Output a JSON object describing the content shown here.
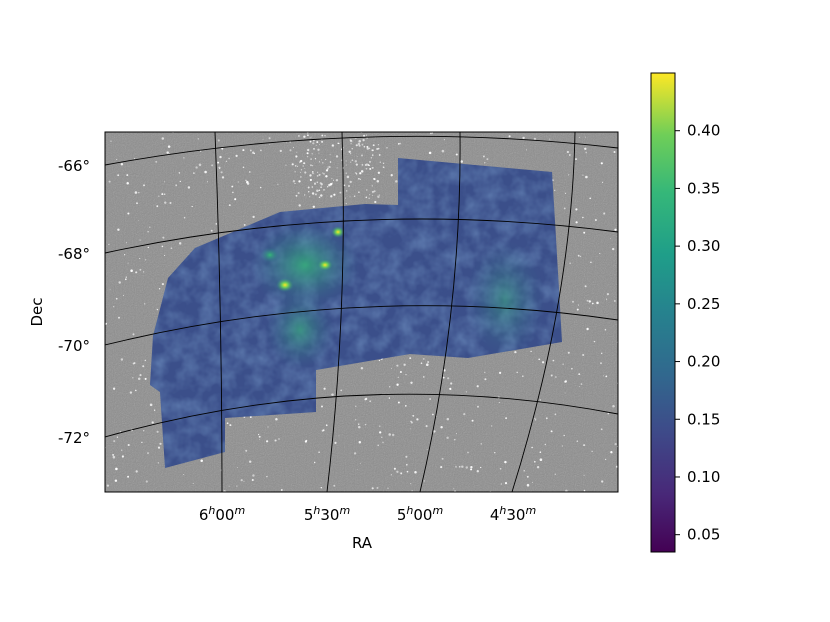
{
  "chart_data": {
    "type": "heatmap",
    "title": "",
    "xlabel": "RA",
    "ylabel": "Dec",
    "background": "greyscale star-field image",
    "colormap": "viridis",
    "grid": true,
    "x_ticks": [
      {
        "h": "6",
        "hs": "h",
        "m": "00",
        "ms": "m"
      },
      {
        "h": "5",
        "hs": "h",
        "m": "30",
        "ms": "m"
      },
      {
        "h": "5",
        "hs": "h",
        "m": "00",
        "ms": "m"
      },
      {
        "h": "4",
        "hs": "h",
        "m": "30",
        "ms": "m"
      }
    ],
    "y_ticks": [
      "-66°",
      "-68°",
      "-70°",
      "-72°"
    ],
    "colorbar": {
      "range": [
        0.035,
        0.45
      ],
      "ticks": [
        0.05,
        0.1,
        0.15,
        0.2,
        0.25,
        0.3,
        0.35,
        0.4
      ],
      "tick_labels": [
        "0.05",
        "0.10",
        "0.15",
        "0.20",
        "0.25",
        "0.30",
        "0.35",
        "0.40"
      ]
    }
  }
}
